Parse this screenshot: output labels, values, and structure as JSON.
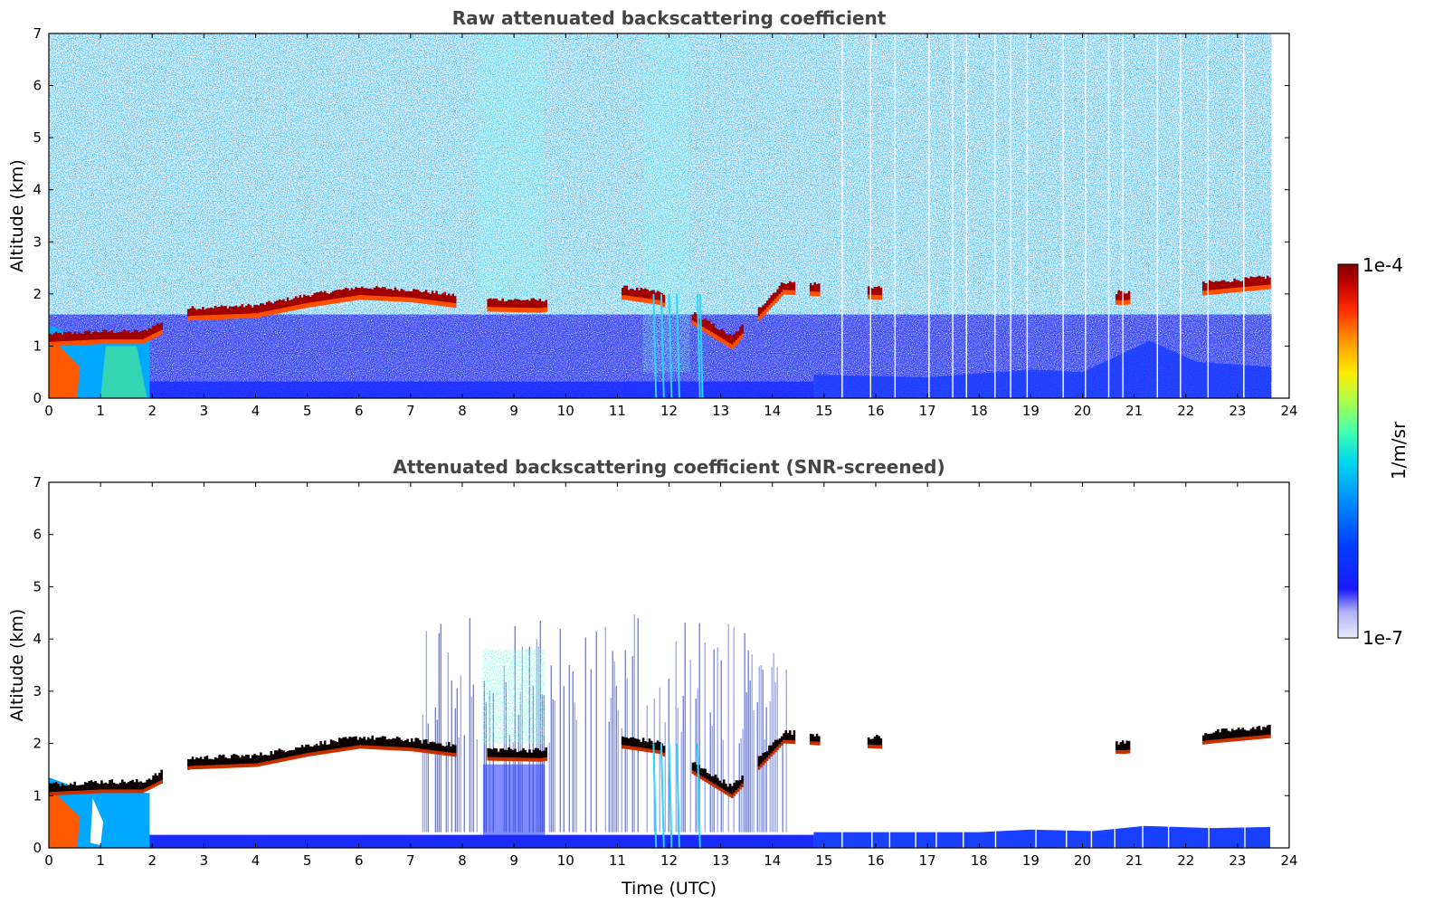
{
  "chart_data": [
    {
      "type": "heatmap",
      "title": "Raw attenuated backscattering coefficient",
      "xlabel": "",
      "ylabel": "Altitude (km)",
      "xlim": [
        0,
        24
      ],
      "ylim": [
        0,
        7
      ],
      "xticks": [
        "0",
        "1",
        "2",
        "3",
        "4",
        "5",
        "6",
        "7",
        "8",
        "9",
        "10",
        "11",
        "12",
        "13",
        "14",
        "15",
        "16",
        "17",
        "18",
        "19",
        "20",
        "21",
        "22",
        "23",
        "24"
      ],
      "yticks": [
        "0",
        "1",
        "2",
        "3",
        "4",
        "5",
        "6",
        "7"
      ],
      "grid": false,
      "features": {
        "noise_top_km": 7,
        "boundary_layer_top_km": 0.35,
        "cloud_layer": [
          {
            "t": 0.0,
            "alt": 1.05
          },
          {
            "t": 1.0,
            "alt": 1.1
          },
          {
            "t": 1.8,
            "alt": 1.1
          },
          {
            "t": 2.7,
            "alt": 1.55
          },
          {
            "t": 4.0,
            "alt": 1.6
          },
          {
            "t": 5.0,
            "alt": 1.8
          },
          {
            "t": 6.0,
            "alt": 1.95
          },
          {
            "t": 7.0,
            "alt": 1.9
          },
          {
            "t": 7.8,
            "alt": 1.8
          },
          {
            "t": 8.5,
            "alt": 1.72
          },
          {
            "t": 9.5,
            "alt": 1.7
          },
          {
            "t": 11.1,
            "alt": 1.95
          },
          {
            "t": 11.8,
            "alt": 1.85
          },
          {
            "t": 13.2,
            "alt": 1.0
          },
          {
            "t": 14.2,
            "alt": 2.05
          },
          {
            "t": 16.0,
            "alt": 1.95
          },
          {
            "t": 20.8,
            "alt": 1.85
          },
          {
            "t": 22.5,
            "alt": 2.05
          },
          {
            "t": 23.6,
            "alt": 2.15
          }
        ]
      }
    },
    {
      "type": "heatmap",
      "title": "Attenuated backscattering coefficient (SNR-screened)",
      "xlabel": "Time (UTC)",
      "ylabel": "Altitude (km)",
      "xlim": [
        0,
        24
      ],
      "ylim": [
        0,
        7
      ],
      "xticks": [
        "0",
        "1",
        "2",
        "3",
        "4",
        "5",
        "6",
        "7",
        "8",
        "9",
        "10",
        "11",
        "12",
        "13",
        "14",
        "15",
        "16",
        "17",
        "18",
        "19",
        "20",
        "21",
        "22",
        "23",
        "24"
      ],
      "yticks": [
        "0",
        "1",
        "2",
        "3",
        "4",
        "5",
        "6",
        "7"
      ],
      "grid": false
    }
  ],
  "colorbar": {
    "label": "1/m/sr",
    "max_label": "1e-4",
    "min_label": "1e-7",
    "colormap": [
      "#e6e6fa",
      "#1f1fff",
      "#0050ff",
      "#00b4ff",
      "#40ffb8",
      "#c0ff40",
      "#ffe000",
      "#ff7000",
      "#ff2000",
      "#800000"
    ]
  }
}
